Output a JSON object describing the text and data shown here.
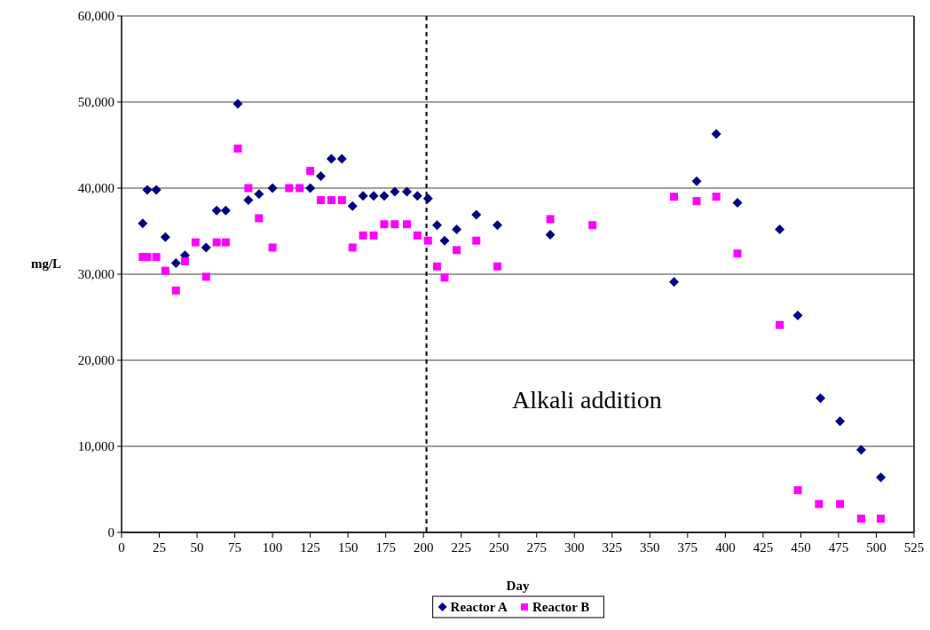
{
  "chart_data": {
    "type": "scatter",
    "xlabel": "Day",
    "ylabel": "mg/L",
    "xlim": [
      0,
      525
    ],
    "xticks": [
      0,
      25,
      50,
      75,
      100,
      125,
      150,
      175,
      200,
      225,
      250,
      275,
      300,
      325,
      350,
      375,
      400,
      425,
      450,
      475,
      500,
      525
    ],
    "ylim": [
      0,
      60000
    ],
    "yticks": [
      {
        "value": 0,
        "label": "0"
      },
      {
        "value": 10000,
        "label": "10,000"
      },
      {
        "value": 20000,
        "label": "20,000"
      },
      {
        "value": 30000,
        "label": "30,000"
      },
      {
        "value": 40000,
        "label": "40,000"
      },
      {
        "value": 50000,
        "label": "50,000"
      },
      {
        "value": 60000,
        "label": "60,000"
      }
    ],
    "grid": "y",
    "legend": "bottom",
    "ref_lines": [
      {
        "axis": "x",
        "value": 202,
        "line_style": "dashed",
        "color": "#000000"
      }
    ],
    "annotations": [
      "Alkali addition"
    ],
    "series": [
      {
        "name": "Reactor A",
        "color": "#000080",
        "marker": "diamond",
        "x": [
          14,
          17,
          23,
          29,
          36,
          42,
          56,
          63,
          69,
          77,
          84,
          91,
          100,
          125,
          132,
          139,
          146,
          153,
          160,
          167,
          174,
          181,
          189,
          196,
          203,
          209,
          214,
          222,
          235,
          249,
          284,
          366,
          381,
          394,
          408,
          436,
          448,
          463,
          476,
          490,
          503
        ],
        "values": [
          35900,
          39800,
          39800,
          34300,
          31300,
          32200,
          33100,
          37400,
          37400,
          49800,
          38600,
          39300,
          40000,
          40000,
          41400,
          43400,
          43400,
          37900,
          39100,
          39100,
          39100,
          39600,
          39600,
          39100,
          38800,
          35700,
          33900,
          35200,
          36900,
          35700,
          34600,
          29100,
          40800,
          46300,
          38300,
          35200,
          25200,
          15600,
          12900,
          9600,
          6400
        ]
      },
      {
        "name": "Reactor B",
        "color": "#ff00ff",
        "marker": "square",
        "x": [
          14,
          17,
          23,
          29,
          36,
          42,
          49,
          56,
          63,
          69,
          77,
          84,
          91,
          100,
          111,
          118,
          125,
          132,
          139,
          146,
          153,
          160,
          167,
          174,
          181,
          189,
          196,
          203,
          209,
          214,
          222,
          235,
          249,
          284,
          312,
          366,
          381,
          394,
          408,
          436,
          448,
          462,
          476,
          490,
          503
        ],
        "values": [
          32000,
          32000,
          32000,
          30400,
          28100,
          31500,
          33700,
          29700,
          33700,
          33700,
          44600,
          40000,
          36500,
          33100,
          40000,
          40000,
          42000,
          38600,
          38600,
          38600,
          33100,
          34500,
          34500,
          35800,
          35800,
          35800,
          34500,
          33900,
          30900,
          29600,
          32800,
          33900,
          30900,
          36400,
          35700,
          39000,
          38500,
          39000,
          32400,
          24100,
          4900,
          3300,
          3300,
          1600,
          1600
        ]
      }
    ]
  }
}
